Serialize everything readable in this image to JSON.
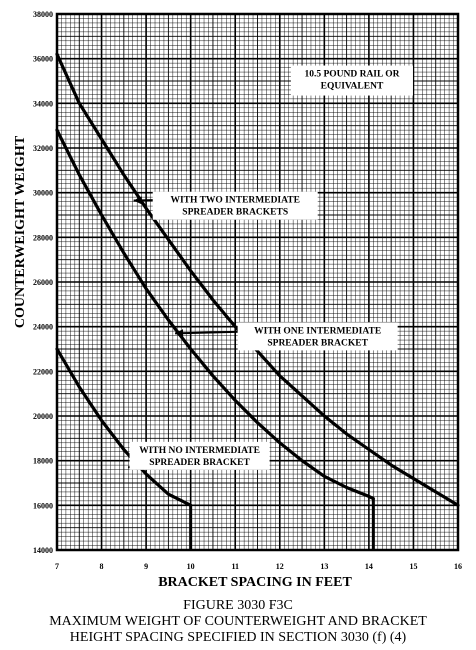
{
  "chart_data": {
    "type": "line",
    "xlabel": "BRACKET SPACING IN FEET",
    "ylabel": "COUNTERWEIGHT WEIGHT",
    "xlim": [
      7,
      16
    ],
    "ylim": [
      14000,
      38000
    ],
    "x_ticks": [
      "7",
      "8",
      "9",
      "10",
      "11",
      "12",
      "13",
      "14",
      "15",
      "16"
    ],
    "y_ticks": [
      "14000",
      "16000",
      "18000",
      "20000",
      "22000",
      "24000",
      "26000",
      "28000",
      "30000",
      "32000",
      "34000",
      "36000",
      "38000"
    ],
    "grid": true,
    "annotations": [
      {
        "lines": [
          "10.5 POUND RAIL OR",
          "EQUIVALENT"
        ]
      },
      {
        "lines": [
          "WITH TWO INTERMEDIATE",
          "SPREADER BRACKETS"
        ]
      },
      {
        "lines": [
          "WITH ONE INTERMEDIATE",
          "SPREADER BRACKET"
        ]
      },
      {
        "lines": [
          "WITH NO INTERMEDIATE",
          "SPREADER BRACKET"
        ]
      }
    ],
    "series": [
      {
        "x": [
          7,
          7.5,
          8,
          8.5,
          9,
          9.5,
          10,
          10.5,
          11,
          11.5,
          12,
          12.5,
          13,
          13.5,
          14,
          14.5,
          15,
          15.5,
          16
        ],
        "y": [
          36200,
          34000,
          32400,
          30800,
          29300,
          27900,
          26500,
          25200,
          24000,
          22900,
          21800,
          20900,
          20000,
          19200,
          18500,
          17800,
          17200,
          16600,
          16000
        ]
      },
      {
        "x": [
          7,
          7.5,
          8,
          8.5,
          9,
          9.5,
          10,
          10.5,
          11,
          11.5,
          12,
          12.5,
          13,
          13.5,
          14,
          14.1
        ],
        "y": [
          32800,
          30800,
          29000,
          27300,
          25700,
          24300,
          23000,
          21800,
          20700,
          19700,
          18800,
          18000,
          17300,
          16800,
          16400,
          16300
        ]
      },
      {
        "x": [
          7,
          7.5,
          8,
          8.5,
          9,
          9.5,
          10
        ],
        "y": [
          23000,
          21300,
          19800,
          18500,
          17400,
          16500,
          16000
        ]
      }
    ]
  },
  "figure_caption": {
    "number": "FIGURE 3030 F3C",
    "line1": "MAXIMUM WEIGHT OF COUNTERWEIGHT AND BRACKET",
    "line2": "HEIGHT SPACING SPECIFIED IN SECTION 3030 (f) (4)"
  }
}
